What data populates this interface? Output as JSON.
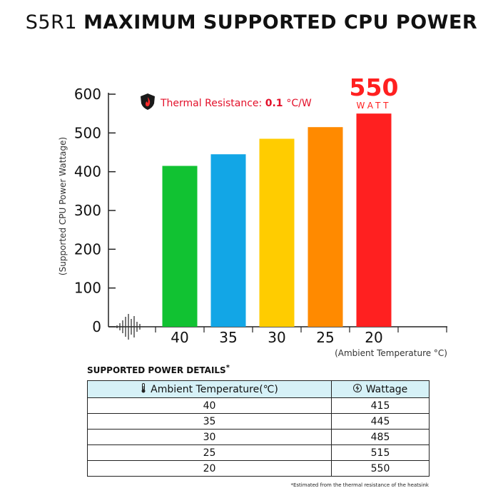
{
  "header": {
    "model": "S5R1",
    "title": "MAXIMUM SUPPORTED CPU POWER"
  },
  "chart_data": {
    "type": "bar",
    "title": "S5R1 MAXIMUM SUPPORTED CPU POWER",
    "categories": [
      "40",
      "35",
      "30",
      "25",
      "20"
    ],
    "values": [
      415,
      445,
      485,
      515,
      550
    ],
    "colors": [
      "#11c232",
      "#12a6e6",
      "#ffcc00",
      "#ff8a00",
      "#ff2020"
    ],
    "xlabel": "(Ambient Temperature °C)",
    "ylabel": "(Supported CPU Power Wattage)",
    "ylim": [
      0,
      600
    ],
    "yticks": [
      0,
      100,
      200,
      300,
      400,
      500,
      600
    ],
    "grid": false,
    "annotation": {
      "label": "Thermal Resistance:",
      "value": "0.1",
      "unit": "°C/W",
      "icon": "flame-shield-icon"
    },
    "highlight": {
      "value": "550",
      "unit": "WATT",
      "color": "#ff2020"
    }
  },
  "table": {
    "title": "SUPPORTED POWER DETAILS",
    "title_mark": "*",
    "headers": [
      "Ambient Temperature(℃)",
      "Wattage"
    ],
    "header_icons": [
      "thermometer-icon",
      "bolt-icon"
    ],
    "rows": [
      [
        "40",
        "415"
      ],
      [
        "35",
        "445"
      ],
      [
        "30",
        "485"
      ],
      [
        "25",
        "515"
      ],
      [
        "20",
        "550"
      ]
    ]
  },
  "footnote": "*Estimated from the thermal resistance of the heatsink"
}
